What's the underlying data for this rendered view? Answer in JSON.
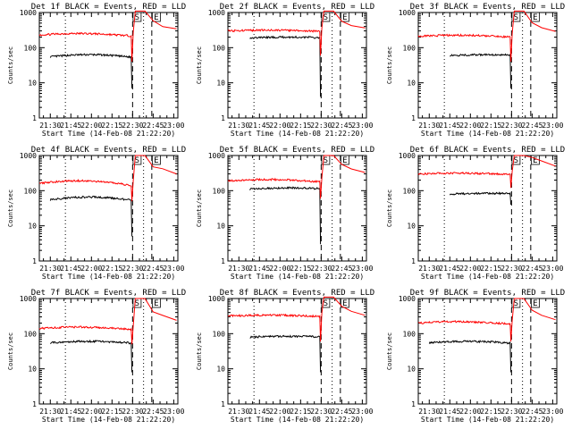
{
  "chart_data": [
    {
      "type": "line",
      "title": "Det 1f BLACK = Events, RED = LLD",
      "xlabel": "Start Time (14-Feb-08 21:22:20)",
      "ylabel": "Counts/sec",
      "yscale": "log",
      "ylim": [
        1,
        1000
      ],
      "xlim": [
        "21:22",
        "23:03"
      ],
      "x_ticks": [
        "21:30",
        "21:45",
        "22:00",
        "22:15",
        "22:30",
        "22:45",
        "23:00"
      ],
      "y_ticks": [
        "1",
        "10",
        "100",
        "1000"
      ],
      "marker_labels": [
        "S",
        "E"
      ],
      "series": [
        {
          "color": "#000000",
          "start": "21:30",
          "end": "22:30",
          "level": 55,
          "slope": 0.15,
          "dip_to": 7
        },
        {
          "color": "#ff0000",
          "start": "21:22",
          "end": "23:02",
          "level": 230,
          "slope": 0.1,
          "dip_to": 40,
          "peak": 1100,
          "after": [
            600,
            400,
            330
          ]
        }
      ]
    },
    {
      "type": "line",
      "title": "Det 2f BLACK = Events, RED = LLD",
      "xlabel": "Start Time (14-Feb-08 21:22:20)",
      "ylabel": "Counts/sec",
      "yscale": "log",
      "ylim": [
        1,
        1000
      ],
      "xlim": [
        "21:22",
        "23:03"
      ],
      "x_ticks": [
        "21:30",
        "21:45",
        "22:00",
        "22:15",
        "22:30",
        "22:45",
        "23:00"
      ],
      "y_ticks": [
        "1",
        "10",
        "100",
        "1000"
      ],
      "marker_labels": [
        "S",
        "E"
      ],
      "series": [
        {
          "color": "#000000",
          "start": "21:38",
          "end": "22:30",
          "level": 190,
          "slope": 0.05,
          "dip_to": 4
        },
        {
          "color": "#ff0000",
          "start": "21:22",
          "end": "23:02",
          "level": 300,
          "slope": 0.05,
          "dip_to": 60,
          "peak": 1100,
          "after": [
            550,
            420,
            350
          ]
        }
      ]
    },
    {
      "type": "line",
      "title": "Det 3f BLACK = Events, RED = LLD",
      "xlabel": "Start Time (14-Feb-08 21:22:20)",
      "ylabel": "Counts/sec",
      "yscale": "log",
      "ylim": [
        1,
        1000
      ],
      "xlim": [
        "21:22",
        "23:03"
      ],
      "x_ticks": [
        "21:30",
        "21:45",
        "22:00",
        "22:15",
        "22:30",
        "22:45",
        "23:00"
      ],
      "y_ticks": [
        "1",
        "10",
        "100",
        "1000"
      ],
      "marker_labels": [
        "S",
        "E"
      ],
      "series": [
        {
          "color": "#000000",
          "start": "21:45",
          "end": "22:30",
          "level": 60,
          "slope": 0.05,
          "dip_to": 7
        },
        {
          "color": "#ff0000",
          "start": "21:22",
          "end": "23:02",
          "level": 210,
          "slope": 0.08,
          "dip_to": 40,
          "peak": 1100,
          "after": [
            500,
            380,
            300
          ]
        }
      ]
    },
    {
      "type": "line",
      "title": "Det 4f BLACK = Events, RED = LLD",
      "xlabel": "Start Time (14-Feb-08 21:22:20)",
      "ylabel": "Counts/sec",
      "yscale": "log",
      "ylim": [
        1,
        1000
      ],
      "xlim": [
        "21:22",
        "23:03"
      ],
      "x_ticks": [
        "21:30",
        "21:45",
        "22:00",
        "22:15",
        "22:30",
        "22:45",
        "23:00"
      ],
      "y_ticks": [
        "1",
        "10",
        "100",
        "1000"
      ],
      "marker_labels": [
        "S",
        "E"
      ],
      "series": [
        {
          "color": "#000000",
          "start": "21:30",
          "end": "22:30",
          "level": 55,
          "slope": 0.2,
          "dip_to": 5
        },
        {
          "color": "#ff0000",
          "start": "21:22",
          "end": "23:02",
          "level": 160,
          "slope": 0.2,
          "dip_to": 50,
          "peak": 1000,
          "after": [
            500,
            400,
            300
          ]
        }
      ]
    },
    {
      "type": "line",
      "title": "Det 5f BLACK = Events, RED = LLD",
      "xlabel": "Start Time (14-Feb-08 21:22:20)",
      "ylabel": "Counts/sec",
      "yscale": "log",
      "ylim": [
        1,
        1000
      ],
      "xlim": [
        "21:22",
        "23:03"
      ],
      "x_ticks": [
        "21:30",
        "21:45",
        "22:00",
        "22:15",
        "22:30",
        "22:45",
        "23:00"
      ],
      "y_ticks": [
        "1",
        "10",
        "100",
        "1000"
      ],
      "marker_labels": [
        "S",
        "E"
      ],
      "series": [
        {
          "color": "#000000",
          "start": "21:38",
          "end": "22:30",
          "level": 110,
          "slope": 0.1,
          "dip_to": 3
        },
        {
          "color": "#ff0000",
          "start": "21:22",
          "end": "23:02",
          "level": 190,
          "slope": 0.1,
          "dip_to": 60,
          "peak": 1000,
          "after": [
            550,
            420,
            330
          ]
        }
      ]
    },
    {
      "type": "line",
      "title": "Det 6f BLACK = Events, RED = LLD",
      "xlabel": "Start Time (14-Feb-08 21:22:20)",
      "ylabel": "Counts/sec",
      "yscale": "log",
      "ylim": [
        1,
        1000
      ],
      "xlim": [
        "21:22",
        "23:03"
      ],
      "x_ticks": [
        "21:30",
        "21:45",
        "22:00",
        "22:15",
        "22:30",
        "22:45",
        "23:00"
      ],
      "y_ticks": [
        "1",
        "10",
        "100",
        "1000"
      ],
      "marker_labels": [
        "S",
        "E"
      ],
      "series": [
        {
          "color": "#000000",
          "start": "21:45",
          "end": "22:30",
          "level": 80,
          "slope": 0.05,
          "dip_to": 40
        },
        {
          "color": "#ff0000",
          "start": "21:22",
          "end": "23:02",
          "level": 300,
          "slope": 0.05,
          "dip_to": 120,
          "peak": 1000,
          "after": [
            900,
            700,
            500
          ]
        }
      ]
    },
    {
      "type": "line",
      "title": "Det 7f BLACK = Events, RED = LLD",
      "xlabel": "Start Time (14-Feb-08 21:22:20)",
      "ylabel": "Counts/sec",
      "yscale": "log",
      "ylim": [
        1,
        1000
      ],
      "xlim": [
        "21:22",
        "23:03"
      ],
      "x_ticks": [
        "21:30",
        "21:45",
        "22:00",
        "22:15",
        "22:30",
        "22:45",
        "23:00"
      ],
      "y_ticks": [
        "1",
        "10",
        "100",
        "1000"
      ],
      "marker_labels": [
        "S",
        "E"
      ],
      "series": [
        {
          "color": "#000000",
          "start": "21:30",
          "end": "22:30",
          "level": 55,
          "slope": 0.1,
          "dip_to": 8
        },
        {
          "color": "#ff0000",
          "start": "21:22",
          "end": "23:02",
          "level": 140,
          "slope": 0.1,
          "dip_to": 50,
          "peak": 1000,
          "after": [
            400,
            330,
            250
          ]
        }
      ]
    },
    {
      "type": "line",
      "title": "Det 8f BLACK = Events, RED = LLD",
      "xlabel": "Start Time (14-Feb-08 21:22:20)",
      "ylabel": "Counts/sec",
      "yscale": "log",
      "ylim": [
        1,
        1000
      ],
      "xlim": [
        "21:22",
        "23:03"
      ],
      "x_ticks": [
        "21:30",
        "21:45",
        "22:00",
        "22:15",
        "22:30",
        "22:45",
        "23:00"
      ],
      "y_ticks": [
        "1",
        "10",
        "100",
        "1000"
      ],
      "marker_labels": [
        "S",
        "E"
      ],
      "series": [
        {
          "color": "#000000",
          "start": "21:38",
          "end": "22:30",
          "level": 80,
          "slope": 0.05,
          "dip_to": 8
        },
        {
          "color": "#ff0000",
          "start": "21:22",
          "end": "23:02",
          "level": 320,
          "slope": 0.05,
          "dip_to": 60,
          "peak": 1100,
          "after": [
            600,
            450,
            350
          ]
        }
      ]
    },
    {
      "type": "line",
      "title": "Det 9f BLACK = Events, RED = LLD",
      "xlabel": "Start Time (14-Feb-08 21:22:20)",
      "ylabel": "Counts/sec",
      "yscale": "log",
      "ylim": [
        1,
        1000
      ],
      "xlim": [
        "21:22",
        "23:03"
      ],
      "x_ticks": [
        "21:30",
        "21:45",
        "22:00",
        "22:15",
        "22:30",
        "22:45",
        "23:00"
      ],
      "y_ticks": [
        "1",
        "10",
        "100",
        "1000"
      ],
      "marker_labels": [
        "S",
        "E"
      ],
      "series": [
        {
          "color": "#000000",
          "start": "21:30",
          "end": "22:30",
          "level": 55,
          "slope": 0.1,
          "dip_to": 8
        },
        {
          "color": "#ff0000",
          "start": "21:22",
          "end": "23:02",
          "level": 200,
          "slope": 0.1,
          "dip_to": 60,
          "peak": 1000,
          "after": [
            450,
            330,
            250
          ]
        }
      ]
    }
  ]
}
